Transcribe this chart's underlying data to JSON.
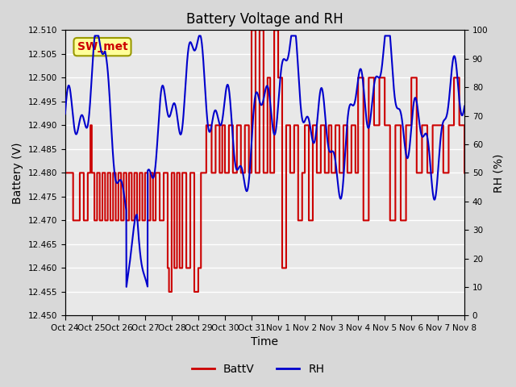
{
  "title": "Battery Voltage and RH",
  "xlabel": "Time",
  "ylabel_left": "Battery (V)",
  "ylabel_right": "RH (%)",
  "annotation_text": "SW_met",
  "annotation_bbox_facecolor": "#FFFF99",
  "annotation_bbox_edgecolor": "#999900",
  "annotation_color": "#CC0000",
  "left_ylim": [
    12.45,
    12.51
  ],
  "right_ylim": [
    0,
    100
  ],
  "xtick_labels": [
    "Oct 24",
    "Oct 25",
    "Oct 26",
    "Oct 27",
    "Oct 28",
    "Oct 29",
    "Oct 30",
    "Oct 31",
    "Nov 1",
    "Nov 2",
    "Nov 3",
    "Nov 4",
    "Nov 5",
    "Nov 6",
    "Nov 7",
    "Nov 8"
  ],
  "bg_color": "#D8D8D8",
  "plot_bg_color": "#E8E8E8",
  "grid_color": "#FFFFFF",
  "battv_color": "#CC0000",
  "rh_color": "#0000CC",
  "legend_battv": "BattV",
  "legend_rh": "RH",
  "title_fontsize": 12,
  "axis_label_fontsize": 10
}
